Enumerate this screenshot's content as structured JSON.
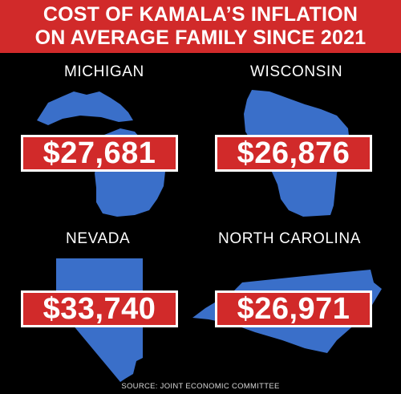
{
  "header": {
    "line1": "COST OF KAMALA’S INFLATION",
    "line2": "ON AVERAGE FAMILY SINCE 2021"
  },
  "states": [
    {
      "name": "MICHIGAN",
      "amount": "$27,681"
    },
    {
      "name": "WISCONSIN",
      "amount": "$26,876"
    },
    {
      "name": "NEVADA",
      "amount": "$33,740"
    },
    {
      "name": "NORTH CAROLINA",
      "amount": "$26,971"
    }
  ],
  "source": "SOURCE: JOINT ECONOMIC COMMITTEE",
  "colors": {
    "banner_red": "#d12a2a",
    "state_blue": "#3a6fc9",
    "background": "#000000",
    "text": "#ffffff"
  }
}
